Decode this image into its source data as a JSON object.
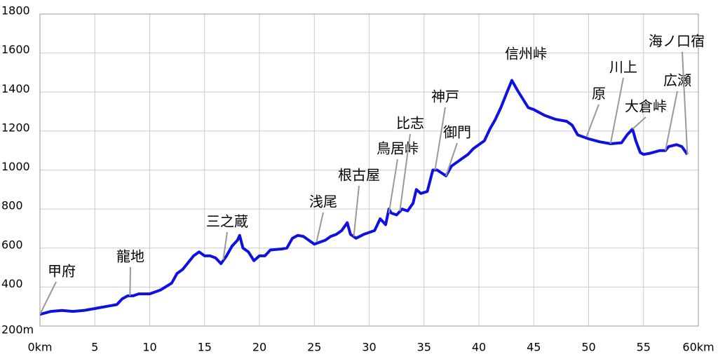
{
  "chart_data": {
    "type": "line",
    "x": [
      0,
      1,
      2,
      3,
      4,
      5,
      6,
      6.5,
      7,
      7.5,
      8,
      8.5,
      9,
      10,
      11,
      12,
      12.5,
      13,
      14,
      14.5,
      15,
      15.5,
      16,
      16.5,
      17,
      17.5,
      18,
      18.2,
      18.5,
      19,
      19.5,
      20,
      20.5,
      21,
      22,
      22.5,
      23,
      23.5,
      24,
      24.5,
      25,
      25.5,
      26,
      26.5,
      27,
      27.5,
      28,
      28.3,
      28.8,
      29.5,
      30,
      30.5,
      31,
      31.5,
      31.8,
      32,
      32.5,
      33,
      33.5,
      34,
      34.3,
      34.7,
      35.3,
      35.8,
      36.2,
      37,
      37.5,
      38,
      38.5,
      39,
      39.5,
      40.5,
      41,
      41.5,
      42,
      42.5,
      43,
      43.5,
      44.5,
      45,
      46,
      47,
      48,
      48.5,
      49,
      50,
      51,
      52,
      53,
      53.5,
      54,
      54.3,
      54.7,
      55,
      55.5,
      56.5,
      57,
      57.3,
      58,
      58.5,
      59
    ],
    "series": [
      {
        "color": "#1010e0",
        "values": [
          260,
          275,
          280,
          275,
          280,
          290,
          300,
          305,
          310,
          340,
          355,
          355,
          365,
          365,
          385,
          420,
          470,
          490,
          560,
          580,
          560,
          560,
          550,
          520,
          560,
          610,
          640,
          665,
          600,
          580,
          535,
          560,
          560,
          590,
          595,
          600,
          650,
          665,
          660,
          640,
          620,
          630,
          640,
          660,
          670,
          690,
          730,
          670,
          650,
          670,
          680,
          690,
          750,
          720,
          800,
          780,
          770,
          800,
          790,
          830,
          900,
          880,
          890,
          1000,
          1000,
          970,
          1020,
          1040,
          1060,
          1080,
          1110,
          1150,
          1210,
          1260,
          1320,
          1390,
          1460,
          1410,
          1320,
          1310,
          1280,
          1260,
          1250,
          1230,
          1180,
          1160,
          1145,
          1135,
          1140,
          1180,
          1210,
          1150,
          1090,
          1080,
          1085,
          1100,
          1100,
          1120,
          1130,
          1120,
          1080
        ]
      }
    ],
    "xlim": [
      0,
      60
    ],
    "ylim": [
      200,
      1800
    ],
    "xticks": [
      {
        "value": 0,
        "label": "0km"
      },
      5,
      10,
      15,
      20,
      25,
      30,
      35,
      40,
      45,
      50,
      55,
      {
        "value": 60,
        "label": "60km"
      }
    ],
    "yticks": [
      {
        "value": 200,
        "label": "200m"
      },
      400,
      600,
      800,
      1000,
      1200,
      1400,
      1600,
      1800
    ],
    "grid": true,
    "annotations": [
      {
        "text": "甲府",
        "x": 0,
        "y": 260
      },
      {
        "text": "龍地",
        "x": 8.2,
        "y": 355
      },
      {
        "text": "三之蔵",
        "x": 16.7,
        "y": 540
      },
      {
        "text": "浅尾",
        "x": 25.2,
        "y": 630
      },
      {
        "text": "根古屋",
        "x": 28.6,
        "y": 660
      },
      {
        "text": "鳥居峠",
        "x": 31.8,
        "y": 780
      },
      {
        "text": "比志",
        "x": 32.8,
        "y": 790
      },
      {
        "text": "神戸",
        "x": 36,
        "y": 1000
      },
      {
        "text": "御門",
        "x": 37,
        "y": 970
      },
      {
        "text": "信州峠",
        "x": 43,
        "y": 1460
      },
      {
        "text": "原",
        "x": 49.8,
        "y": 1170
      },
      {
        "text": "川上",
        "x": 52,
        "y": 1135
      },
      {
        "text": "大倉峠",
        "x": 54,
        "y": 1210
      },
      {
        "text": "広瀬",
        "x": 57,
        "y": 1100
      },
      {
        "text": "海ノ口宿",
        "x": 59,
        "y": 1080
      }
    ]
  }
}
